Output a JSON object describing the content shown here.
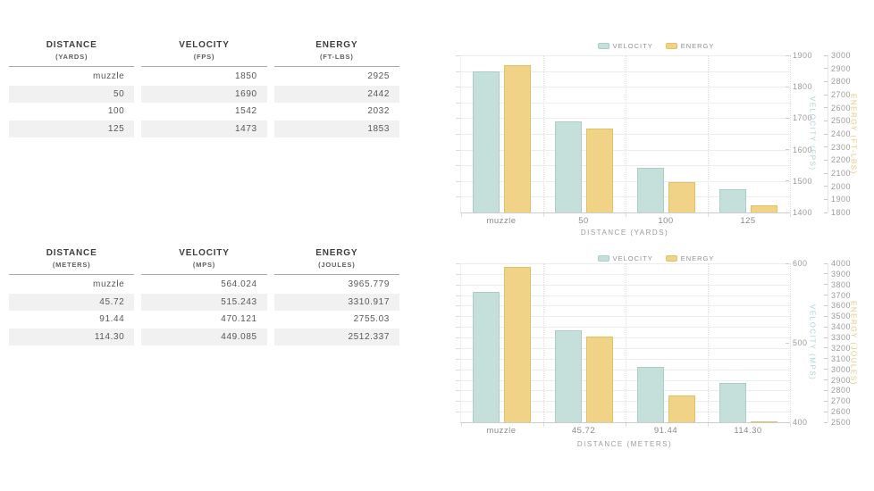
{
  "colors": {
    "velocity_bar": "#c5dfda",
    "velocity_border": "#abcdc8",
    "energy_bar": "#f0d387",
    "energy_border": "#e2c066",
    "velocity_axis_label": "#a9d5d2",
    "energy_axis_label": "#e9c97e",
    "stripe": "#f1f1f1"
  },
  "tables": [
    {
      "columns": [
        {
          "title": "DISTANCE",
          "unit": "(YARDS)"
        },
        {
          "title": "VELOCITY",
          "unit": "(FPS)"
        },
        {
          "title": "ENERGY",
          "unit": "(FT-LBS)"
        }
      ],
      "rows": [
        [
          "muzzle",
          "1850",
          "2925"
        ],
        [
          "50",
          "1690",
          "2442"
        ],
        [
          "100",
          "1542",
          "2032"
        ],
        [
          "125",
          "1473",
          "1853"
        ]
      ]
    },
    {
      "columns": [
        {
          "title": "DISTANCE",
          "unit": "(METERS)"
        },
        {
          "title": "VELOCITY",
          "unit": "(MPS)"
        },
        {
          "title": "ENERGY",
          "unit": "(JOULES)"
        }
      ],
      "rows": [
        [
          "muzzle",
          "564.024",
          "3965.779"
        ],
        [
          "45.72",
          "515.243",
          "3310.917"
        ],
        [
          "91.44",
          "470.121",
          "2755.03"
        ],
        [
          "114.30",
          "449.085",
          "2512.337"
        ]
      ]
    }
  ],
  "chart_data": [
    {
      "type": "bar",
      "categories": [
        "muzzle",
        "50",
        "100",
        "125"
      ],
      "series": [
        {
          "name": "VELOCITY",
          "axis": 0,
          "values": [
            1850,
            1690,
            1542,
            1473
          ]
        },
        {
          "name": "ENERGY",
          "axis": 1,
          "values": [
            2925,
            2442,
            2032,
            1853
          ]
        }
      ],
      "xlabel": "DISTANCE (YARDS)",
      "y_axes": [
        {
          "label": "VELOCITY (FPS)",
          "min": 1400,
          "max": 1900,
          "ticks": [
            1900,
            1800,
            1700,
            1600,
            1500,
            1400
          ]
        },
        {
          "label": "ENERGY (FT-LBS)",
          "min": 1800,
          "max": 3000,
          "ticks": [
            3000,
            2900,
            2800,
            2700,
            2600,
            2500,
            2400,
            2300,
            2200,
            2100,
            2000,
            1900,
            1800
          ]
        }
      ],
      "legend_position": "top",
      "grid_intervals": 10
    },
    {
      "type": "bar",
      "categories": [
        "muzzle",
        "45.72",
        "91.44",
        "114.30"
      ],
      "series": [
        {
          "name": "VELOCITY",
          "axis": 0,
          "values": [
            564.024,
            515.243,
            470.121,
            449.085
          ]
        },
        {
          "name": "ENERGY",
          "axis": 1,
          "values": [
            3965.779,
            3310.917,
            2755.03,
            2512.337
          ]
        }
      ],
      "xlabel": "DISTANCE (METERS)",
      "y_axes": [
        {
          "label": "VELOCITY (MPS)",
          "min": 400,
          "max": 600,
          "ticks": [
            600,
            500,
            400
          ]
        },
        {
          "label": "ENERGY (JOULES)",
          "min": 2500,
          "max": 4000,
          "ticks": [
            4000,
            3900,
            3800,
            3700,
            3600,
            3500,
            3400,
            3300,
            3200,
            3100,
            3000,
            2900,
            2800,
            2700,
            2600,
            2500
          ]
        }
      ],
      "legend_position": "top",
      "grid_intervals": 15
    }
  ]
}
